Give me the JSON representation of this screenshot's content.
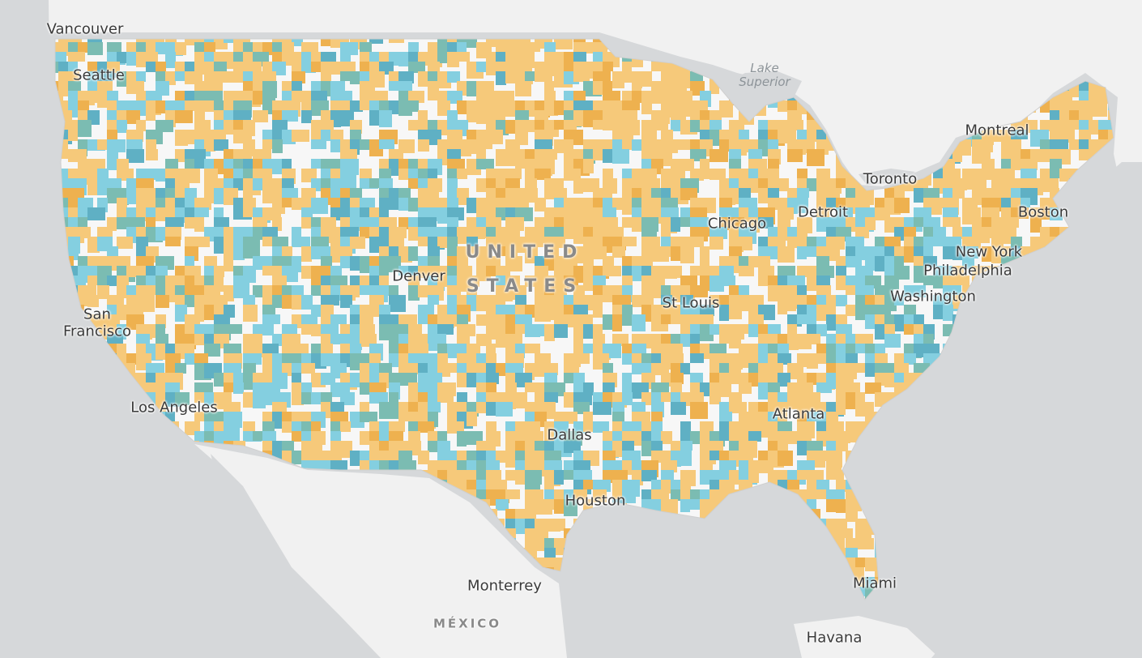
{
  "map": {
    "colors": {
      "water": "#d6d8da",
      "land": "#f1f1f1",
      "us_land": "#f7f7f7",
      "border": "#cfcfcf",
      "orange": "#f6c97a",
      "orange_dark": "#eeb14f",
      "blue": "#84cfe0",
      "teal": "#7bbcb2",
      "teal_dark": "#5fb0c4"
    },
    "labels": {
      "vancouver": "Vancouver",
      "seattle": "Seattle",
      "san_francisco": "San\nFrancisco",
      "los_angeles": "Los Angeles",
      "denver": "Denver",
      "united_states": "UNITED\nSTATES",
      "dallas": "Dallas",
      "houston": "Houston",
      "monterrey": "Monterrey",
      "mexico": "MÉXICO",
      "st_louis": "St Louis",
      "chicago": "Chicago",
      "detroit": "Detroit",
      "toronto": "Toronto",
      "montreal": "Montreal",
      "boston": "Boston",
      "new_york": "New York",
      "philadelphia": "Philadelphia",
      "washington": "Washington",
      "atlanta": "Atlanta",
      "miami": "Miami",
      "havana": "Havana",
      "lake_superior": "Lake\nSuperior"
    }
  }
}
